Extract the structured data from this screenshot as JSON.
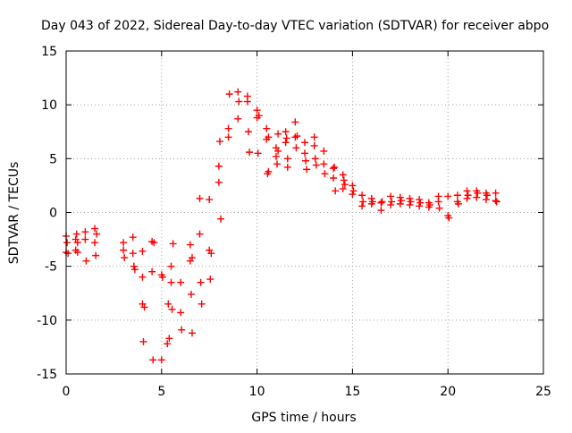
{
  "chart_data": {
    "type": "scatter",
    "title": "Day 043 of 2022, Sidereal Day-to-day VTEC variation (SDTVAR) for receiver abpo",
    "xlabel": "GPS time / hours",
    "ylabel": "SDTVAR / TECUs",
    "xlim": [
      0,
      25
    ],
    "ylim": [
      -15,
      15
    ],
    "xticks": [
      0,
      5,
      10,
      15,
      20,
      25
    ],
    "yticks": [
      -15,
      -10,
      -5,
      0,
      5,
      10,
      15
    ],
    "xtick_labels": [
      "0",
      "5",
      "10",
      "15",
      "20",
      "25"
    ],
    "ytick_labels": [
      "-15",
      "-10",
      "-5",
      "0",
      "5",
      "10",
      "15"
    ],
    "grid": true,
    "legend": "none",
    "marker": "plus",
    "color": "#ff0000",
    "series": [
      {
        "name": "SDTVAR",
        "x": [
          0.0,
          0.0,
          0.05,
          0.1,
          0.5,
          0.5,
          0.55,
          0.6,
          0.6,
          1.0,
          1.0,
          1.05,
          1.5,
          1.5,
          1.55,
          1.6,
          3.0,
          3.0,
          3.05,
          3.5,
          3.5,
          3.55,
          3.6,
          4.0,
          4.0,
          4.0,
          4.05,
          4.1,
          4.5,
          4.5,
          4.55,
          4.6,
          5.0,
          5.0,
          5.05,
          5.3,
          5.35,
          5.4,
          5.5,
          5.5,
          5.55,
          5.6,
          6.0,
          6.0,
          6.05,
          6.5,
          6.5,
          6.55,
          6.6,
          6.6,
          7.0,
          7.0,
          7.05,
          7.1,
          7.5,
          7.5,
          7.55,
          7.6,
          8.0,
          8.0,
          8.05,
          8.1,
          8.5,
          8.5,
          8.55,
          9.0,
          9.0,
          9.05,
          9.5,
          9.5,
          9.55,
          9.6,
          10.0,
          10.0,
          10.05,
          10.1,
          10.5,
          10.5,
          10.55,
          10.6,
          10.6,
          11.0,
          11.0,
          11.05,
          11.1,
          11.1,
          11.5,
          11.5,
          11.55,
          11.6,
          11.6,
          12.0,
          12.0,
          12.05,
          12.1,
          12.5,
          12.5,
          12.55,
          12.6,
          13.0,
          13.0,
          13.05,
          13.1,
          13.5,
          13.5,
          13.55,
          14.0,
          14.0,
          14.05,
          14.1,
          14.5,
          14.5,
          14.55,
          14.6,
          15.0,
          15.0,
          15.05,
          15.5,
          15.5,
          15.55,
          16.0,
          16.0,
          16.05,
          16.5,
          16.5,
          16.55,
          17.0,
          17.0,
          17.05,
          17.5,
          17.5,
          17.55,
          18.0,
          18.0,
          18.05,
          18.5,
          18.5,
          18.55,
          19.0,
          19.0,
          19.05,
          19.5,
          19.5,
          19.55,
          20.0,
          20.0,
          20.05,
          20.5,
          20.5,
          20.55,
          21.0,
          21.0,
          21.05,
          21.5,
          21.5,
          21.55,
          22.0,
          22.0,
          22.05,
          22.5,
          22.5,
          22.55
        ],
        "y": [
          -2.2,
          -3.7,
          -2.8,
          -3.8,
          -2.5,
          -3.5,
          -2.0,
          -2.8,
          -3.7,
          -1.8,
          -2.5,
          -4.5,
          -1.5,
          -2.8,
          -4.0,
          -2.0,
          -2.8,
          -3.5,
          -4.2,
          -2.3,
          -3.8,
          -5.0,
          -5.3,
          -3.6,
          -6.0,
          -8.5,
          -12.0,
          -8.8,
          -2.7,
          -5.5,
          -13.7,
          -2.8,
          -5.8,
          -13.7,
          -6.0,
          -12.2,
          -8.5,
          -11.7,
          -5.0,
          -6.5,
          -9.0,
          -2.9,
          -6.5,
          -9.3,
          -10.9,
          -3.0,
          -4.5,
          -7.6,
          -11.2,
          -4.2,
          1.3,
          -2.0,
          -6.5,
          -8.5,
          1.2,
          -3.5,
          -6.2,
          -3.8,
          4.3,
          2.8,
          6.6,
          -0.6,
          7.8,
          7.0,
          11.0,
          11.2,
          8.7,
          10.3,
          10.3,
          10.8,
          7.5,
          5.6,
          9.5,
          8.8,
          5.5,
          9.0,
          7.8,
          6.8,
          3.6,
          7.0,
          3.8,
          6.0,
          5.2,
          4.5,
          7.3,
          5.7,
          7.5,
          6.5,
          6.9,
          4.2,
          5.0,
          8.4,
          7.0,
          6.0,
          7.1,
          6.5,
          5.5,
          4.8,
          4.0,
          7.0,
          6.2,
          5.0,
          4.4,
          5.7,
          4.5,
          3.6,
          4.1,
          3.2,
          4.2,
          2.0,
          3.5,
          2.2,
          3.0,
          2.6,
          2.5,
          1.7,
          2.0,
          1.6,
          0.6,
          1.0,
          1.3,
          0.8,
          1.0,
          0.9,
          0.2,
          1.0,
          1.5,
          0.7,
          1.0,
          1.4,
          0.8,
          1.1,
          1.3,
          0.7,
          1.0,
          1.2,
          0.6,
          0.9,
          0.9,
          0.5,
          0.7,
          1.5,
          1.0,
          0.4,
          1.5,
          -0.3,
          -0.5,
          1.6,
          1.0,
          0.8,
          2.0,
          1.3,
          1.6,
          2.0,
          1.4,
          1.8,
          1.8,
          1.2,
          1.6,
          1.8,
          1.1,
          1.0
        ]
      }
    ]
  }
}
